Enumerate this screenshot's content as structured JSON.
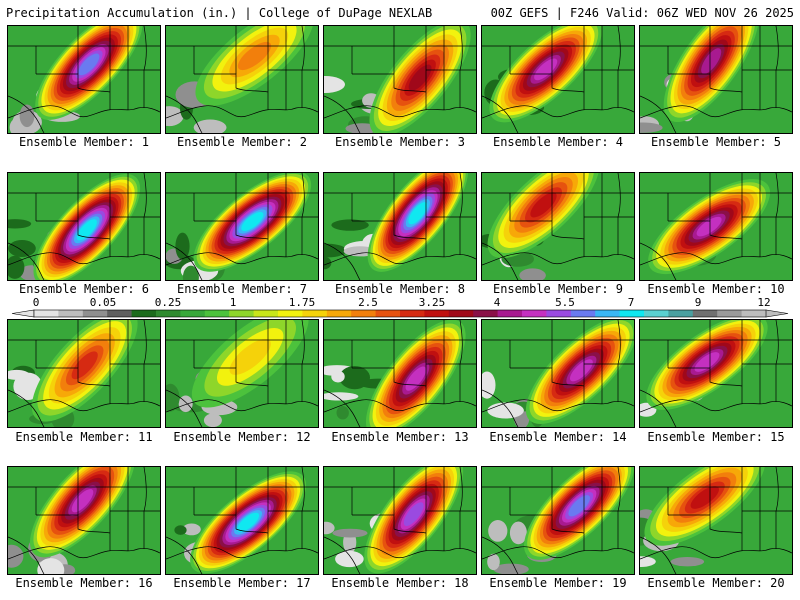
{
  "header": {
    "left": "Precipitation Accumulation (in.) | College of DuPage NEXLAB",
    "right": "00Z GEFS | F246 Valid: 06Z WED NOV 26 2025"
  },
  "colorbar": {
    "labels": [
      "0",
      "0.05",
      "0.25",
      "1",
      "1.75",
      "2.5",
      "3.25",
      "4",
      "5.5",
      "7",
      "9",
      "12"
    ],
    "colors": [
      "#e4e4e4",
      "#bdbdbd",
      "#8f8f8f",
      "#5f5f5f",
      "#1c6b1c",
      "#2f8a2f",
      "#38a83a",
      "#4cc23c",
      "#8ed62a",
      "#c8e61a",
      "#f2f20e",
      "#f5d20a",
      "#f7a808",
      "#f27f0c",
      "#e6520f",
      "#d62a12",
      "#c01010",
      "#a0081a",
      "#8a1048",
      "#a81a90",
      "#c430c0",
      "#9a4ae0",
      "#6a7af0",
      "#3ab6f5",
      "#10e8f0",
      "#5ad0d0",
      "#4aa0a0",
      "#707070",
      "#9a9a9a",
      "#bdbdbd"
    ]
  },
  "members": [
    {
      "caption": "Ensemble Member: 1",
      "max": 6
    },
    {
      "caption": "Ensemble Member: 2",
      "max": 2
    },
    {
      "caption": "Ensemble Member: 3",
      "max": 3.5
    },
    {
      "caption": "Ensemble Member: 4",
      "max": 5
    },
    {
      "caption": "Ensemble Member: 5",
      "max": 4
    },
    {
      "caption": "Ensemble Member: 6",
      "max": 7
    },
    {
      "caption": "Ensemble Member: 7",
      "max": 7.5
    },
    {
      "caption": "Ensemble Member: 8",
      "max": 7
    },
    {
      "caption": "Ensemble Member: 9",
      "max": 3
    },
    {
      "caption": "Ensemble Member: 10",
      "max": 4.5
    },
    {
      "caption": "Ensemble Member: 11",
      "max": 2.5
    },
    {
      "caption": "Ensemble Member: 12",
      "max": 1.5
    },
    {
      "caption": "Ensemble Member: 13",
      "max": 4.5
    },
    {
      "caption": "Ensemble Member: 14",
      "max": 4.5
    },
    {
      "caption": "Ensemble Member: 15",
      "max": 5
    },
    {
      "caption": "Ensemble Member: 16",
      "max": 5
    },
    {
      "caption": "Ensemble Member: 17",
      "max": 7.5
    },
    {
      "caption": "Ensemble Member: 18",
      "max": 5.5
    },
    {
      "caption": "Ensemble Member: 19",
      "max": 6
    },
    {
      "caption": "Ensemble Member: 20",
      "max": 3
    }
  ]
}
